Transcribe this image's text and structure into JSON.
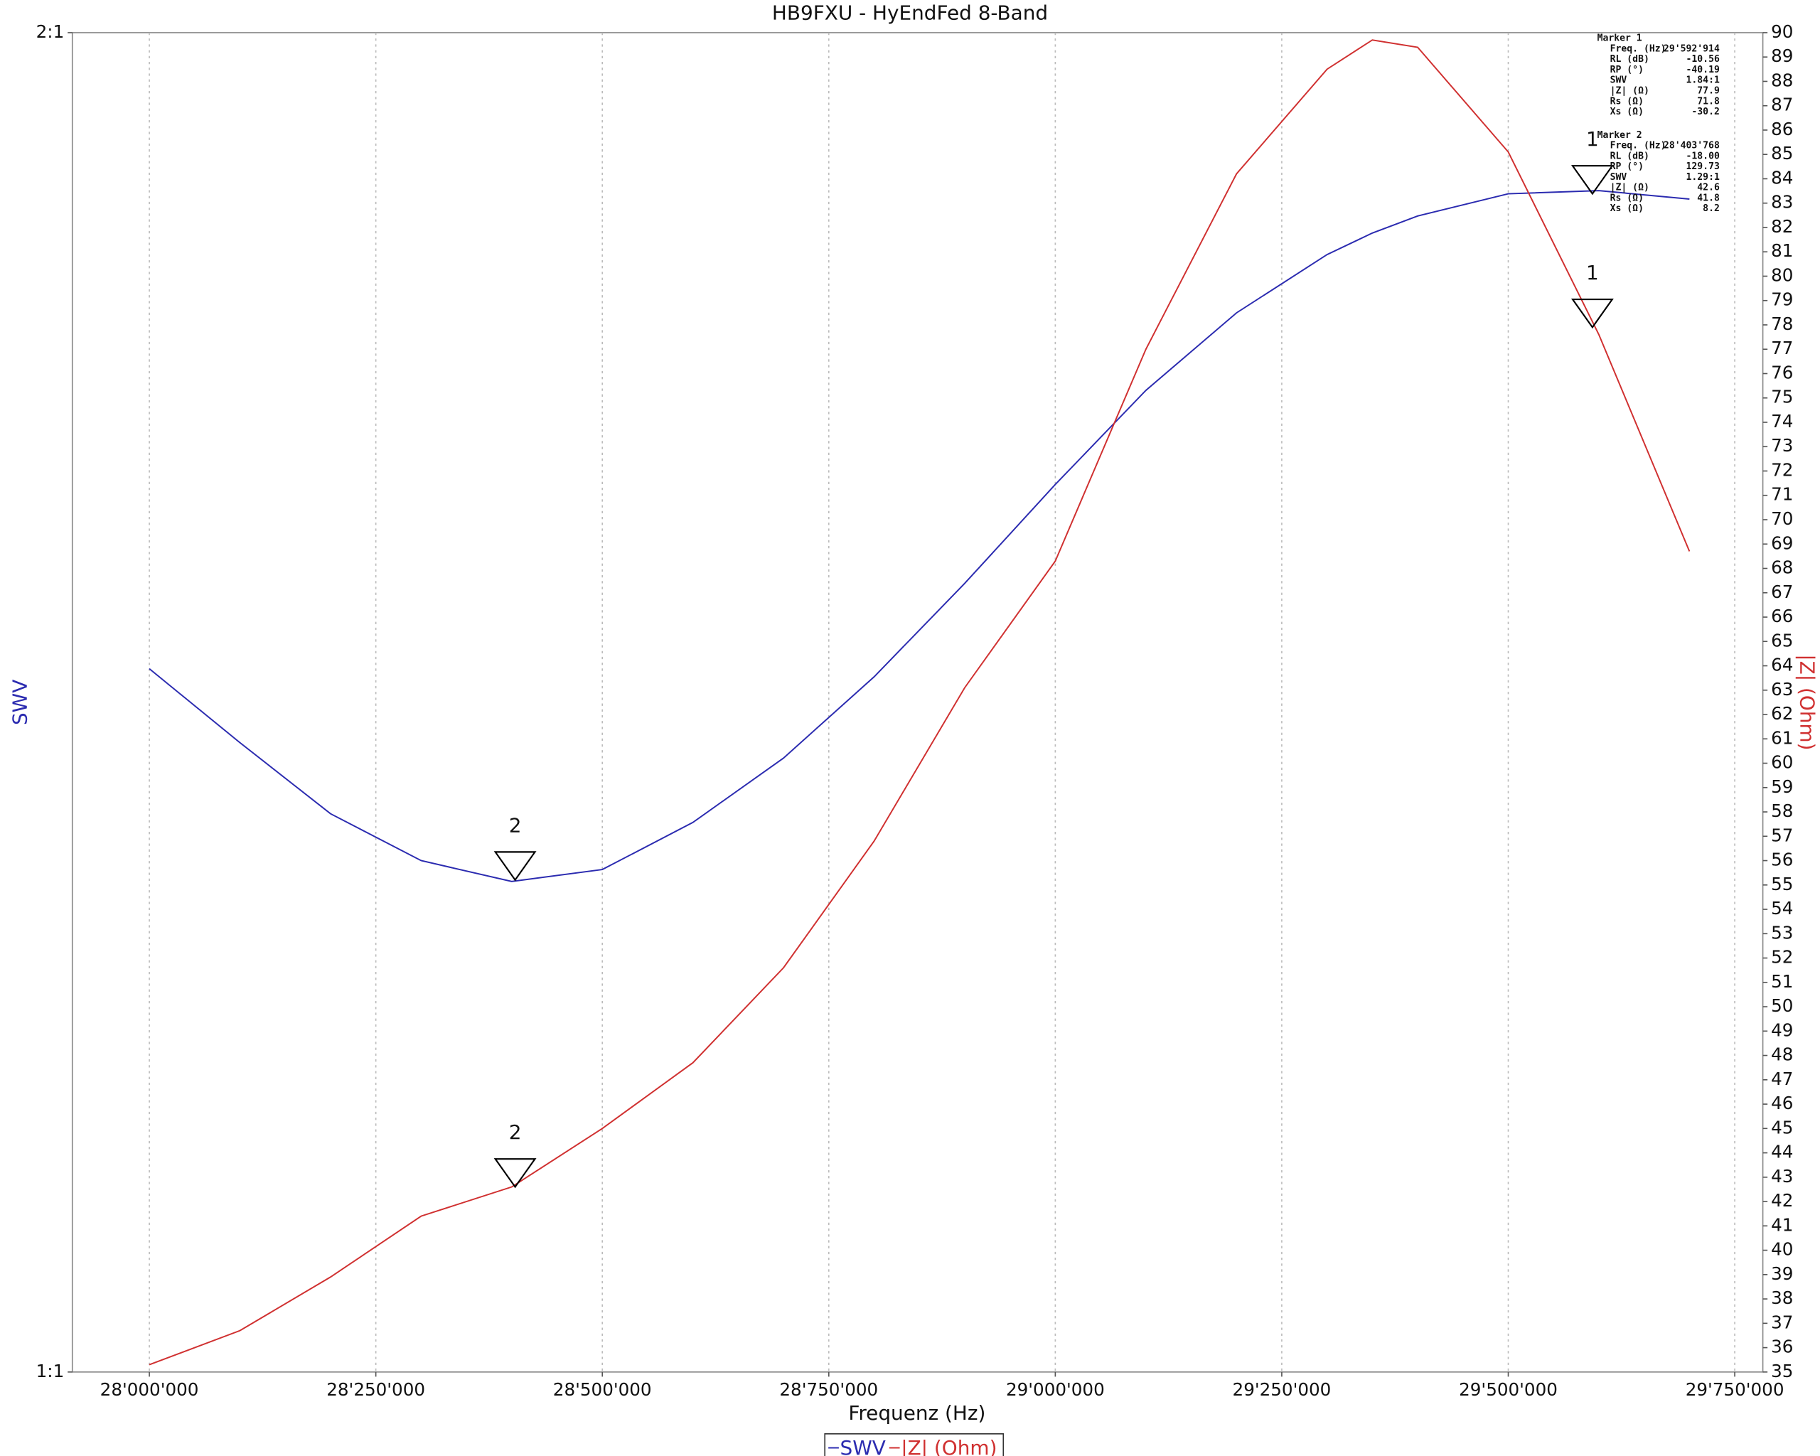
{
  "chart_data": {
    "type": "line",
    "title": "HB9FXU - HyEndFed 8-Band",
    "x_label": "Frequenz (Hz)",
    "y_label": "SWV",
    "y2_label": "|Z| (Ohm)",
    "x": [
      28000000,
      28100000,
      28200000,
      28300000,
      28400000,
      28500000,
      28600000,
      28700000,
      28800000,
      28900000,
      29000000,
      29100000,
      29200000,
      29300000,
      29350000,
      29400000,
      29500000,
      29600000,
      29700000
    ],
    "series": [
      {
        "name": "SWV",
        "color": "#2b2bb0",
        "axis": "y",
        "values": [
          1.439,
          1.385,
          1.335,
          1.303,
          1.289,
          1.297,
          1.329,
          1.374,
          1.433,
          1.504,
          1.583,
          1.662,
          1.73,
          1.783,
          1.803,
          1.819,
          1.84,
          1.843,
          1.835
        ]
      },
      {
        "name": "|Z| (Ohm)",
        "color": "#d03030",
        "axis": "y2",
        "values": [
          35.3,
          36.7,
          38.9,
          41.4,
          42.6,
          45.0,
          47.7,
          51.6,
          56.8,
          63.1,
          68.3,
          77.0,
          84.2,
          88.5,
          89.7,
          89.4,
          85.1,
          77.6,
          68.7
        ]
      }
    ],
    "xlim": [
      27915000,
      29781000
    ],
    "xticks": [
      {
        "value": 28000000,
        "label": "28'000'000"
      },
      {
        "value": 28250000,
        "label": "28'250'000"
      },
      {
        "value": 28500000,
        "label": "28'500'000"
      },
      {
        "value": 28750000,
        "label": "28'750'000"
      },
      {
        "value": 29000000,
        "label": "29'000'000"
      },
      {
        "value": 29250000,
        "label": "29'250'000"
      },
      {
        "value": 29500000,
        "label": "29'500'000"
      },
      {
        "value": 29750000,
        "label": "29'750'000"
      }
    ],
    "ylim": [
      1,
      2
    ],
    "y_log": true,
    "yticks": [
      {
        "value": 1,
        "label": "1:1"
      },
      {
        "value": 2,
        "label": "2:1"
      }
    ],
    "y2lim": [
      35,
      90
    ],
    "y2ticks": [
      35,
      36,
      37,
      38,
      39,
      40,
      41,
      42,
      43,
      44,
      45,
      46,
      47,
      48,
      49,
      50,
      51,
      52,
      53,
      54,
      55,
      56,
      57,
      58,
      59,
      60,
      61,
      62,
      63,
      64,
      65,
      66,
      67,
      68,
      69,
      70,
      71,
      72,
      73,
      74,
      75,
      76,
      77,
      78,
      79,
      80,
      81,
      82,
      83,
      84,
      85,
      86,
      87,
      88,
      89,
      90
    ],
    "grid": "x",
    "legend": "bottom",
    "markers": [
      {
        "label": "1",
        "x": 29592914,
        "swv": 1.84,
        "z": 77.9
      },
      {
        "label": "2",
        "x": 28403768,
        "swv": 1.29,
        "z": 42.6
      }
    ],
    "marker_table": [
      {
        "title": "Marker 1",
        "rows": [
          [
            "Freq. (Hz)",
            "29'592'914"
          ],
          [
            "RL (dB)",
            "-10.56"
          ],
          [
            "RP (°)",
            "-40.19"
          ],
          [
            "SWV",
            "1.84:1"
          ],
          [
            "|Z| (Ω)",
            "77.9"
          ],
          [
            "Rs (Ω)",
            "71.8"
          ],
          [
            "Xs (Ω)",
            "-30.2"
          ]
        ]
      },
      {
        "title": "Marker 2",
        "rows": [
          [
            "Freq. (Hz)",
            "28'403'768"
          ],
          [
            "RL (dB)",
            "-18.00"
          ],
          [
            "RP (°)",
            "129.73"
          ],
          [
            "SWV",
            "1.29:1"
          ],
          [
            "|Z| (Ω)",
            "42.6"
          ],
          [
            "Rs (Ω)",
            "41.8"
          ],
          [
            "Xs (Ω)",
            "8.2"
          ]
        ]
      }
    ]
  }
}
